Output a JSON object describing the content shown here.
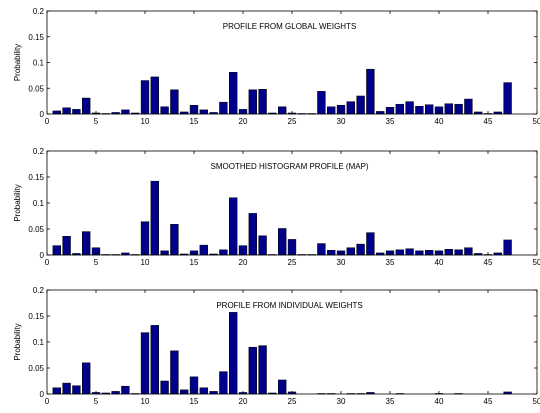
{
  "chart_data": [
    {
      "type": "bar",
      "title": "PROFILE FROM GLOBAL WEIGHTS",
      "ylabel": "Probability",
      "xlabel": "",
      "xlim": [
        0,
        50
      ],
      "ylim": [
        0,
        0.2
      ],
      "xticks": [
        "0",
        "5",
        "10",
        "15",
        "20",
        "25",
        "30",
        "35",
        "40",
        "45",
        "50"
      ],
      "yticks": [
        "0",
        "0.05",
        "0.1",
        "0.15",
        "0.2"
      ],
      "x": [
        1,
        2,
        3,
        4,
        5,
        6,
        7,
        8,
        9,
        10,
        11,
        12,
        13,
        14,
        15,
        16,
        17,
        18,
        19,
        20,
        21,
        22,
        23,
        24,
        25,
        26,
        27,
        28,
        29,
        30,
        31,
        32,
        33,
        34,
        35,
        36,
        37,
        38,
        39,
        40,
        41,
        42,
        43,
        44,
        45,
        46,
        47,
        48,
        49,
        50
      ],
      "values": [
        0.006,
        0.012,
        0.009,
        0.031,
        0.002,
        0.001,
        0.003,
        0.008,
        0.002,
        0.065,
        0.072,
        0.014,
        0.047,
        0.004,
        0.017,
        0.008,
        0.003,
        0.023,
        0.081,
        0.009,
        0.047,
        0.048,
        0.002,
        0.014,
        0.002,
        0.001,
        0.001,
        0.044,
        0.014,
        0.017,
        0.024,
        0.035,
        0.087,
        0.005,
        0.013,
        0.019,
        0.024,
        0.015,
        0.018,
        0.014,
        0.02,
        0.019,
        0.029,
        0.004,
        0.001,
        0.004,
        0.061,
        0.0,
        0.0,
        0.0
      ]
    },
    {
      "type": "bar",
      "title": "SMOOTHED HISTOGRAM PROFILE (MAP)",
      "ylabel": "Probability",
      "xlabel": "",
      "xlim": [
        0,
        50
      ],
      "ylim": [
        0,
        0.2
      ],
      "xticks": [
        "0",
        "5",
        "10",
        "15",
        "20",
        "25",
        "30",
        "35",
        "40",
        "45",
        "50"
      ],
      "yticks": [
        "0",
        "0.05",
        "0.1",
        "0.15",
        "0.2"
      ],
      "x": [
        1,
        2,
        3,
        4,
        5,
        6,
        7,
        8,
        9,
        10,
        11,
        12,
        13,
        14,
        15,
        16,
        17,
        18,
        19,
        20,
        21,
        22,
        23,
        24,
        25,
        26,
        27,
        28,
        29,
        30,
        31,
        32,
        33,
        34,
        35,
        36,
        37,
        38,
        39,
        40,
        41,
        42,
        43,
        44,
        45,
        46,
        47,
        48,
        49,
        50
      ],
      "values": [
        0.018,
        0.036,
        0.003,
        0.045,
        0.014,
        0.001,
        0.001,
        0.004,
        0.001,
        0.064,
        0.142,
        0.008,
        0.059,
        0.002,
        0.008,
        0.019,
        0.002,
        0.01,
        0.11,
        0.018,
        0.08,
        0.037,
        0.001,
        0.051,
        0.03,
        0.001,
        0.001,
        0.022,
        0.009,
        0.008,
        0.014,
        0.021,
        0.043,
        0.004,
        0.008,
        0.01,
        0.012,
        0.008,
        0.009,
        0.008,
        0.011,
        0.01,
        0.014,
        0.003,
        0.001,
        0.004,
        0.029,
        0.0,
        0.0,
        0.0
      ]
    },
    {
      "type": "bar",
      "title": "PROFILE FROM INDIVIDUAL WEIGHTS",
      "ylabel": "Probability",
      "xlabel": "",
      "xlim": [
        0,
        50
      ],
      "ylim": [
        0,
        0.2
      ],
      "xticks": [
        "0",
        "5",
        "10",
        "15",
        "20",
        "25",
        "30",
        "35",
        "40",
        "45",
        "50"
      ],
      "yticks": [
        "0",
        "0.05",
        "0.1",
        "0.15",
        "0.2"
      ],
      "x": [
        1,
        2,
        3,
        4,
        5,
        6,
        7,
        8,
        9,
        10,
        11,
        12,
        13,
        14,
        15,
        16,
        17,
        18,
        19,
        20,
        21,
        22,
        23,
        24,
        25,
        26,
        27,
        28,
        29,
        30,
        31,
        32,
        33,
        34,
        35,
        36,
        37,
        38,
        39,
        40,
        41,
        42,
        43,
        44,
        45,
        46,
        47,
        48,
        49,
        50
      ],
      "values": [
        0.012,
        0.021,
        0.016,
        0.06,
        0.003,
        0.002,
        0.005,
        0.015,
        0.001,
        0.118,
        0.132,
        0.025,
        0.083,
        0.008,
        0.033,
        0.012,
        0.005,
        0.043,
        0.157,
        0.003,
        0.09,
        0.093,
        0.002,
        0.027,
        0.004,
        0.0,
        0.0,
        0.001,
        0.001,
        0.0,
        0.001,
        0.001,
        0.003,
        0.0,
        0.0,
        0.001,
        0.0,
        0.0,
        0.0,
        0.001,
        0.0,
        0.001,
        0.0,
        0.0,
        0.0,
        0.0,
        0.004,
        0.0,
        0.0,
        0.0
      ]
    }
  ]
}
